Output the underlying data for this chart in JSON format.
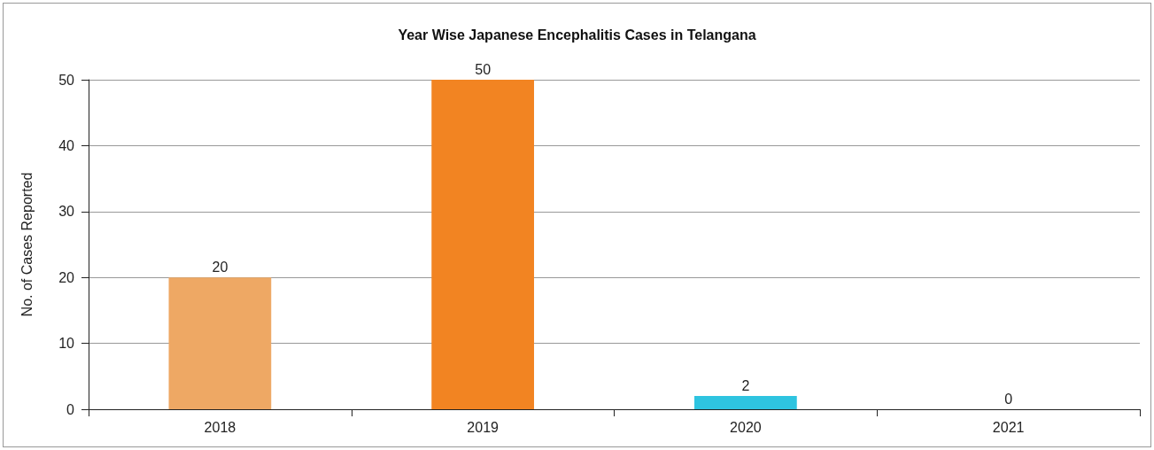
{
  "chart_data": {
    "type": "bar",
    "title": "Year Wise Japanese Encephalitis Cases in Telangana",
    "ylabel": "No. of Cases Reported",
    "categories": [
      "2018",
      "2019",
      "2020",
      "2021"
    ],
    "values": [
      20,
      50,
      2,
      0
    ],
    "colors": [
      "#eea864",
      "#f28422",
      "#2ec4e0",
      "#a6a6a6"
    ],
    "ylim": [
      0,
      50
    ],
    "yticks": [
      0,
      10,
      20,
      30,
      40,
      50
    ],
    "grid": "y",
    "data_labels": true
  }
}
